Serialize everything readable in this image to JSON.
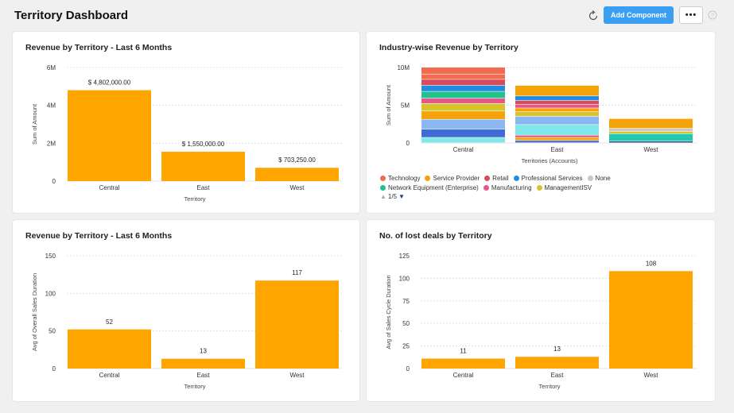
{
  "header": {
    "title": "Territory Dashboard",
    "add_component_label": "Add Component",
    "more_label": "•••"
  },
  "cards": {
    "revenue6m": {
      "title": "Revenue by Territory - Last 6 Months"
    },
    "industry": {
      "title": "Industry-wise Revenue by Territory",
      "legend": [
        {
          "label": "Technology",
          "color": "#f26b4f"
        },
        {
          "label": "Service Provider",
          "color": "#f5a30a"
        },
        {
          "label": "Retail",
          "color": "#d94a5a"
        },
        {
          "label": "Professional Services",
          "color": "#1f8de3"
        },
        {
          "label": "None",
          "color": "#c8c8c8"
        },
        {
          "label": "Network Equipment (Enterprise)",
          "color": "#22c08a"
        },
        {
          "label": "Manufacturing",
          "color": "#e5578a"
        },
        {
          "label": "ManagementISV",
          "color": "#d6c42a"
        }
      ],
      "pager": "1/5"
    },
    "avgcycle": {
      "title": "Revenue by Territory - Last 6 Months"
    },
    "lostdeals": {
      "title": "No. of lost deals by Territory"
    }
  },
  "chart_data": [
    {
      "id": "revenue6m",
      "type": "bar",
      "categories": [
        "Central",
        "East",
        "West"
      ],
      "values": [
        4802000,
        1550000,
        703250
      ],
      "data_labels": [
        "$ 4,802,000.00",
        "$ 1,550,000.00",
        "$ 703,250.00"
      ],
      "ylim": [
        0,
        6000000
      ],
      "yticks": [
        0,
        2000000,
        4000000,
        6000000
      ],
      "ytick_labels": [
        "0",
        "2M",
        "4M",
        "6M"
      ],
      "xlabel": "Territory",
      "ylabel": "Sum of Amount",
      "color": "#ffa500"
    },
    {
      "id": "industry",
      "type": "bar",
      "stacked": true,
      "categories": [
        "Central",
        "East",
        "West"
      ],
      "ylim": [
        0,
        10000000
      ],
      "yticks": [
        0,
        5000000,
        10000000
      ],
      "ytick_labels": [
        "0",
        "5M",
        "10M"
      ],
      "xlabel": "Territories (Accounts)",
      "ylabel": "Sum of Amount",
      "segments": [
        [
          {
            "value": 700000,
            "color": "#7fe8e8"
          },
          {
            "value": 1100000,
            "color": "#3f6bd6"
          },
          {
            "value": 1300000,
            "color": "#8ab6f2"
          },
          {
            "value": 1100000,
            "color": "#f5a30a"
          },
          {
            "value": 1000000,
            "color": "#d6c42a"
          },
          {
            "value": 700000,
            "color": "#e5578a"
          },
          {
            "value": 900000,
            "color": "#22c08a"
          },
          {
            "value": 800000,
            "color": "#1f8de3"
          },
          {
            "value": 800000,
            "color": "#d94a5a"
          },
          {
            "value": 700000,
            "color": "#f26b4f"
          },
          {
            "value": 900000,
            "color": "#f26b4f"
          }
        ],
        [
          {
            "value": 300000,
            "color": "#3f6bd6"
          },
          {
            "value": 400000,
            "color": "#f5a30a"
          },
          {
            "value": 300000,
            "color": "#e5578a"
          },
          {
            "value": 1400000,
            "color": "#7fe8e8"
          },
          {
            "value": 1100000,
            "color": "#8ab6f2"
          },
          {
            "value": 600000,
            "color": "#d6c42a"
          },
          {
            "value": 500000,
            "color": "#f5a30a"
          },
          {
            "value": 500000,
            "color": "#e5578a"
          },
          {
            "value": 500000,
            "color": "#d94a5a"
          },
          {
            "value": 600000,
            "color": "#1f8de3"
          },
          {
            "value": 1400000,
            "color": "#f5a30a"
          }
        ],
        [
          {
            "value": 200000,
            "color": "#1f3a8a"
          },
          {
            "value": 1000000,
            "color": "#22c8b0"
          },
          {
            "value": 300000,
            "color": "#d6c42a"
          },
          {
            "value": 400000,
            "color": "#c8c8c8"
          },
          {
            "value": 1300000,
            "color": "#f5a30a"
          }
        ]
      ]
    },
    {
      "id": "avgcycle",
      "type": "bar",
      "categories": [
        "Central",
        "East",
        "West"
      ],
      "values": [
        52,
        13,
        117
      ],
      "data_labels": [
        "52",
        "13",
        "117"
      ],
      "ylim": [
        0,
        150
      ],
      "yticks": [
        0,
        50,
        100,
        150
      ],
      "ytick_labels": [
        "0",
        "50",
        "100",
        "150"
      ],
      "xlabel": "Territory",
      "ylabel": "Avg of Overall Sales Duration",
      "color": "#ffa500"
    },
    {
      "id": "lostdeals",
      "type": "bar",
      "categories": [
        "Central",
        "East",
        "West"
      ],
      "values": [
        11,
        13,
        108
      ],
      "data_labels": [
        "11",
        "13",
        "108"
      ],
      "ylim": [
        0,
        125
      ],
      "yticks": [
        0,
        25,
        50,
        75,
        100,
        125
      ],
      "ytick_labels": [
        "0",
        "25",
        "50",
        "75",
        "100",
        "125"
      ],
      "xlabel": "Territory",
      "ylabel": "Avg of Sales Cycle Duration",
      "color": "#ffa500"
    }
  ]
}
